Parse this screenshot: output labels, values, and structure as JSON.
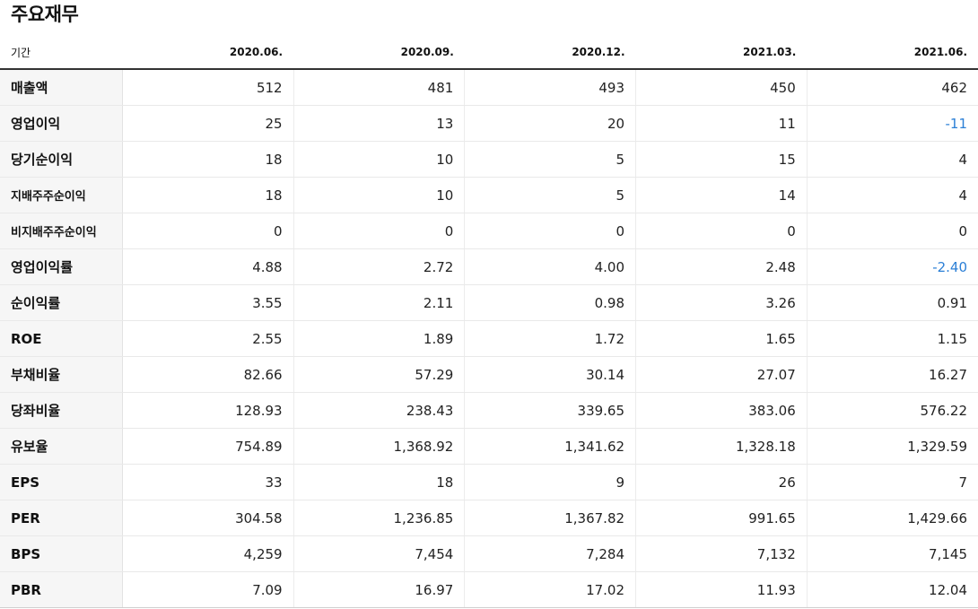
{
  "title": "주요재무",
  "table": {
    "period_label": "기간",
    "columns": [
      "2020.06.",
      "2020.09.",
      "2020.12.",
      "2021.03.",
      "2021.06."
    ],
    "rows": [
      {
        "label": "매출액",
        "values": [
          "512",
          "481",
          "493",
          "450",
          "462"
        ]
      },
      {
        "label": "영업이익",
        "values": [
          "25",
          "13",
          "20",
          "11",
          "-11"
        ]
      },
      {
        "label": "당기순이익",
        "values": [
          "18",
          "10",
          "5",
          "15",
          "4"
        ]
      },
      {
        "label": "지배주주순이익",
        "values": [
          "18",
          "10",
          "5",
          "14",
          "4"
        ]
      },
      {
        "label": "비지배주주순이익",
        "values": [
          "0",
          "0",
          "0",
          "0",
          "0"
        ]
      },
      {
        "label": "영업이익률",
        "values": [
          "4.88",
          "2.72",
          "4.00",
          "2.48",
          "-2.40"
        ]
      },
      {
        "label": "순이익률",
        "values": [
          "3.55",
          "2.11",
          "0.98",
          "3.26",
          "0.91"
        ]
      },
      {
        "label": "ROE",
        "values": [
          "2.55",
          "1.89",
          "1.72",
          "1.65",
          "1.15"
        ]
      },
      {
        "label": "부채비율",
        "values": [
          "82.66",
          "57.29",
          "30.14",
          "27.07",
          "16.27"
        ]
      },
      {
        "label": "당좌비율",
        "values": [
          "128.93",
          "238.43",
          "339.65",
          "383.06",
          "576.22"
        ]
      },
      {
        "label": "유보율",
        "values": [
          "754.89",
          "1,368.92",
          "1,341.62",
          "1,328.18",
          "1,329.59"
        ]
      },
      {
        "label": "EPS",
        "values": [
          "33",
          "18",
          "9",
          "26",
          "7"
        ]
      },
      {
        "label": "PER",
        "values": [
          "304.58",
          "1,236.85",
          "1,367.82",
          "991.65",
          "1,429.66"
        ]
      },
      {
        "label": "BPS",
        "values": [
          "4,259",
          "7,454",
          "7,284",
          "7,132",
          "7,145"
        ]
      },
      {
        "label": "PBR",
        "values": [
          "7.09",
          "16.97",
          "17.02",
          "11.93",
          "12.04"
        ]
      }
    ]
  },
  "colors": {
    "negative": "#2b7fd6"
  }
}
